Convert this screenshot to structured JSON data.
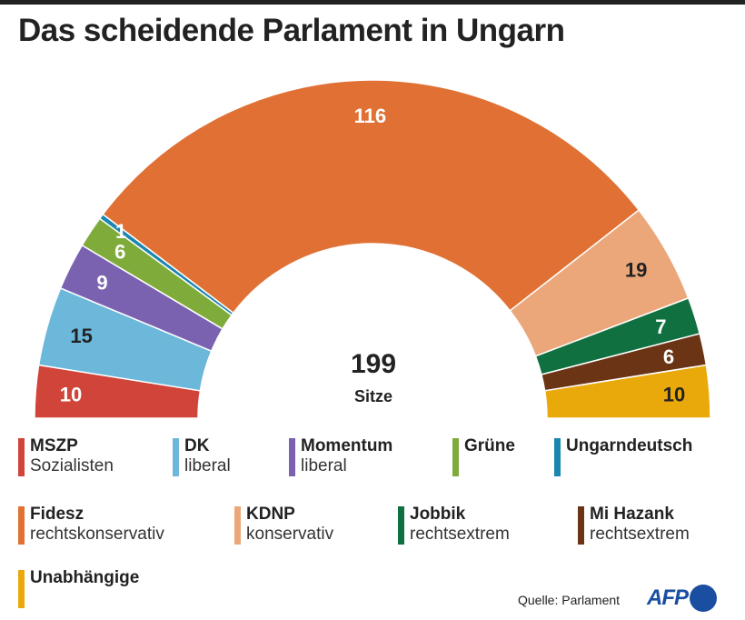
{
  "chart_data": {
    "type": "parliament",
    "title": "Das scheidende Parlament in Ungarn",
    "total": 199,
    "total_label": "Sitze",
    "series": [
      {
        "name": "MSZP",
        "desc": "Sozialisten",
        "value": 10,
        "color": "#d0443a",
        "label_color": "#ffffff"
      },
      {
        "name": "DK",
        "desc": "liberal",
        "value": 15,
        "color": "#6bb8da",
        "label_color": "#222222"
      },
      {
        "name": "Momentum",
        "desc": "liberal",
        "value": 9,
        "color": "#7b62b0",
        "label_color": "#ffffff"
      },
      {
        "name": "Grüne",
        "desc": "",
        "value": 6,
        "color": "#7fab3b",
        "label_color": "#ffffff"
      },
      {
        "name": "Ungarndeutsch",
        "desc": "",
        "value": 1,
        "color": "#1b86b0",
        "label_color": "#ffffff"
      },
      {
        "name": "Fidesz",
        "desc": "rechtskonservativ",
        "value": 116,
        "color": "#e07033",
        "label_color": "#ffffff"
      },
      {
        "name": "KDNP",
        "desc": "konservativ",
        "value": 19,
        "color": "#eba77a",
        "label_color": "#222222"
      },
      {
        "name": "Jobbik",
        "desc": "rechtsextrem",
        "value": 7,
        "color": "#10703f",
        "label_color": "#ffffff"
      },
      {
        "name": "Mi Hazank",
        "desc": "rechtsextrem",
        "value": 6,
        "color": "#6b3415",
        "label_color": "#ffffff"
      },
      {
        "name": "Unabhängige",
        "desc": "",
        "value": 10,
        "color": "#e9a90b",
        "label_color": "#222222"
      }
    ]
  },
  "footer": {
    "source": "Quelle: Parlament",
    "logo": "AFP"
  }
}
